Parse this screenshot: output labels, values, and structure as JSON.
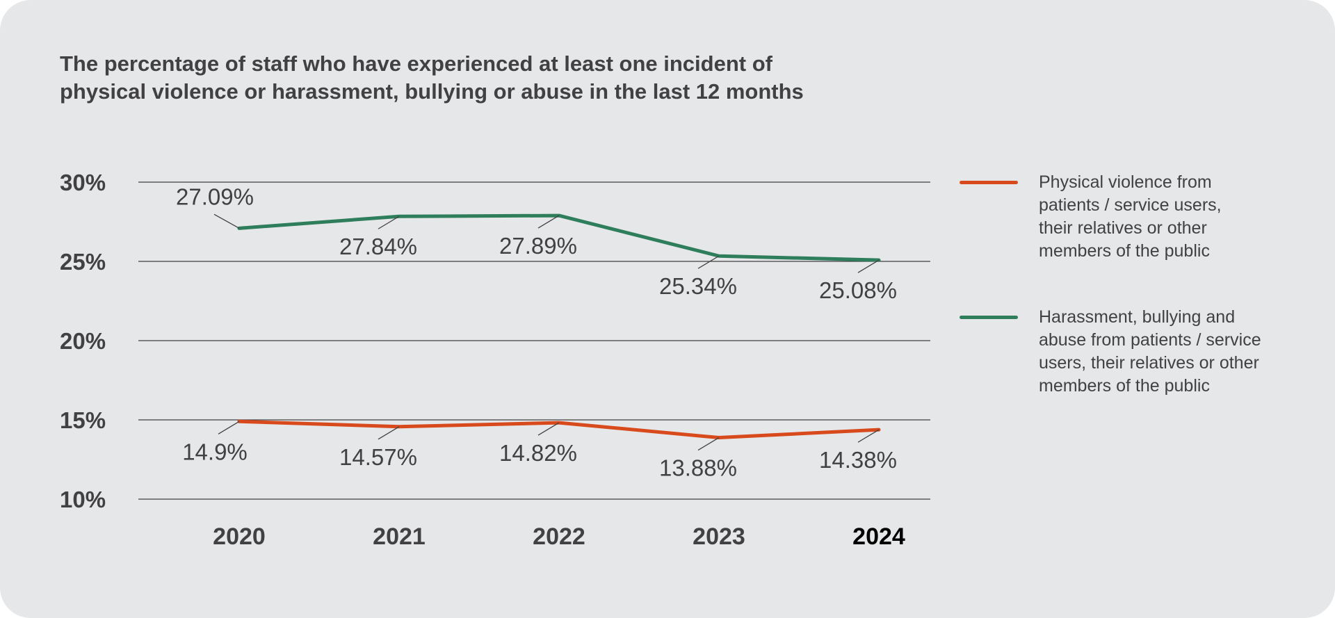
{
  "title_lines": [
    "The percentage of staff who have experienced at least one incident of",
    "physical violence or harassment, bullying or abuse in the last 12 months"
  ],
  "chart_data": {
    "type": "line",
    "title": "The percentage of staff who have experienced at least one incident of physical violence or harassment, bullying or abuse in the last 12 months",
    "categories": [
      "2020",
      "2021",
      "2022",
      "2023",
      "2024"
    ],
    "y_ticks": [
      "30%",
      "25%",
      "20%",
      "15%",
      "10%"
    ],
    "ylim": [
      10,
      30
    ],
    "grid": true,
    "legend_position": "right",
    "series": [
      {
        "name": "Physical violence from patients / service users, their relatives or other members of the public",
        "color": "#d84a1b",
        "values": [
          14.9,
          14.57,
          14.82,
          13.88,
          14.38
        ],
        "labels": [
          "14.9%",
          "14.57%",
          "14.82%",
          "13.88%",
          "14.38%"
        ]
      },
      {
        "name": "Harassment, bullying and abuse from patients / service users, their relatives or other members of the public",
        "color": "#2e7d5b",
        "values": [
          27.09,
          27.84,
          27.89,
          25.34,
          25.08
        ],
        "labels": [
          "27.09%",
          "27.84%",
          "27.89%",
          "25.34%",
          "25.08%"
        ]
      }
    ]
  },
  "legend": [
    {
      "lines": [
        "Physical violence from",
        "patients / service users,",
        "their relatives or other",
        "members of the public"
      ],
      "color": "#d84a1b"
    },
    {
      "lines": [
        "Harassment, bullying and",
        "abuse from patients / service",
        "users, their relatives or other",
        "members of the public"
      ],
      "color": "#2e7d5b"
    }
  ]
}
